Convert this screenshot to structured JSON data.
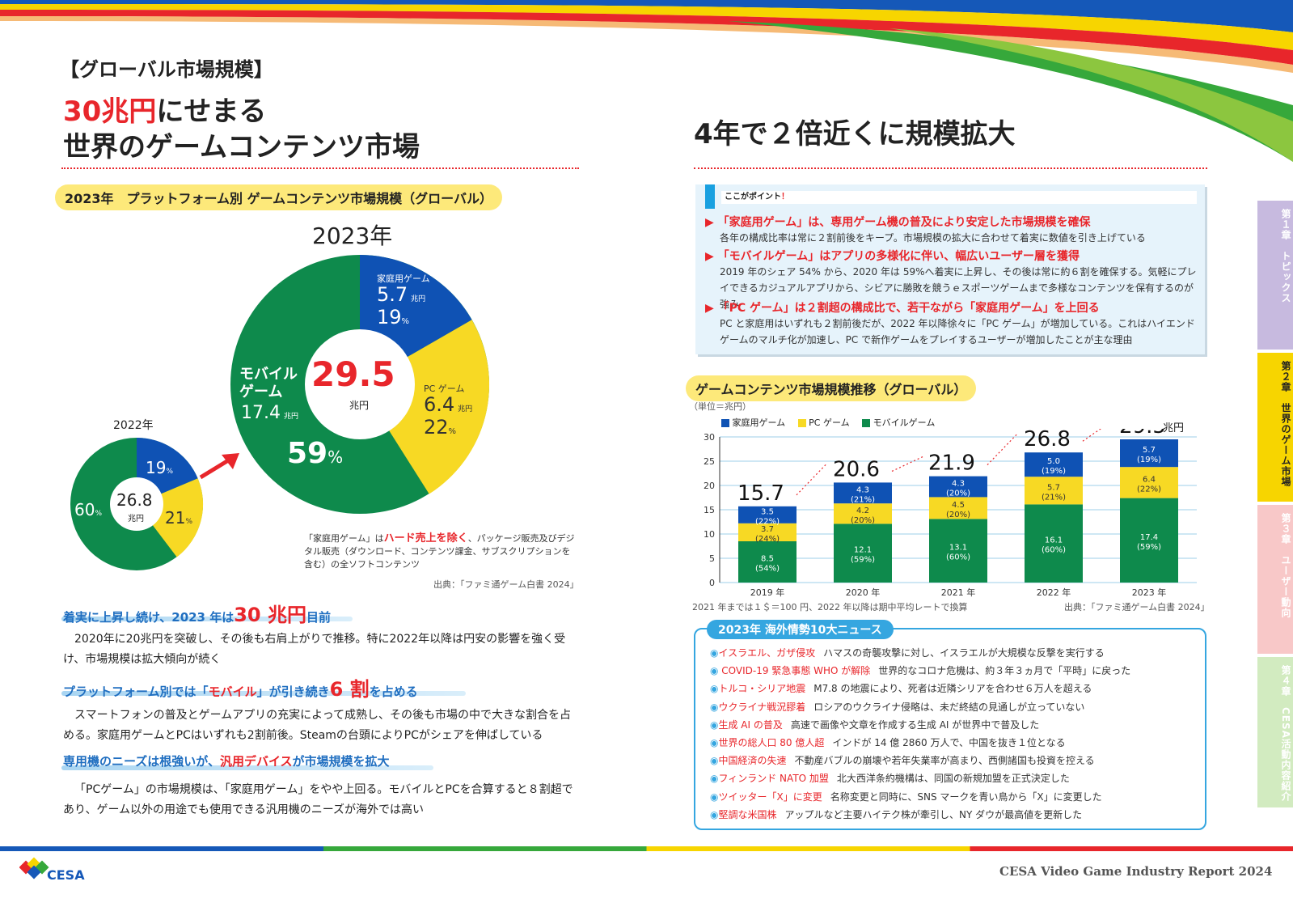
{
  "header": {
    "section_tag": "【グローバル市場規模】",
    "headline_red": "30兆円",
    "headline_rest": "にせまる",
    "headline_line2": "世界のゲームコンテンツ市場",
    "right_headline": "4年で２倍近くに規模拡大"
  },
  "pie_section": {
    "pill": "2023年　プラットフォーム別 ゲームコンテンツ市場規模（グローバル）",
    "year_2023_label": "2023年",
    "year_2022_label": "2022年",
    "big_total": "29.5",
    "big_total_unit": "兆円",
    "small_total": "26.8",
    "small_total_unit": "兆円",
    "console_label": "家庭用ゲーム",
    "console_value": "5.7",
    "console_unit": "兆円",
    "console_pct": "19",
    "pc_label": "PC ゲーム",
    "pc_value": "6.4",
    "pc_unit": "兆円",
    "pc_pct": "22",
    "mobile_label_1": "モバイル",
    "mobile_label_2": "ゲーム",
    "mobile_value": "17.4",
    "mobile_unit": "兆円",
    "mobile_pct": "59",
    "pct_sign": "%",
    "small_console_pct": "19",
    "small_pc_pct": "21",
    "small_mobile_pct": "60",
    "note_prefix": "「家庭用ゲーム」は",
    "note_red": "ハード売上を除く",
    "note_rest": "、パッケージ販売及びデジタル販売（ダウンロード、コンテンツ課金、サブスクリプションを含む）の全ソフトコンテンツ",
    "source": "出典：「ファミ通ゲーム白書 2024」"
  },
  "left_text": {
    "h1_pre": "着実に上昇し続け、2023 年は",
    "h1_big": "30 兆円",
    "h1_post": "目前",
    "p1": "2020年に20兆円を突破し、その後も右肩上がりで推移。特に2022年以降は円安の影響を強く受け、市場規模は拡大傾向が続く",
    "h2_pre": "プラットフォーム別では「",
    "h2_red": "モバイル",
    "h2_mid": "」が引き続き",
    "h2_big": "6 割",
    "h2_post": "を占める",
    "p2": "スマートフォンの普及とゲームアプリの充実によって成熟し、その後も市場の中で大きな割合を占める。家庭用ゲームとPCはいずれも2割前後。Steamの台頭によりPCがシェアを伸ばしている",
    "h3_pre": "専用機のニーズは根強いが、",
    "h3_red": "汎用デバイス",
    "h3_post": "が市場規模を拡大",
    "p3": "「PCゲーム」の市場規模は、「家庭用ゲーム」をやや上回る。モバイルとPCを合算すると８割超であり、ゲーム以外の用途でも使用できる汎用機のニーズが海外では高い"
  },
  "points": {
    "label": "ここがポイント",
    "label_mark": "！",
    "items": [
      {
        "title": "「家庭用ゲーム」は、専用ゲーム機の普及により安定した市場規模を確保",
        "body": "各年の構成比率は常に２割前後をキープ。市場規模の拡大に合わせて着実に数値を引き上げている"
      },
      {
        "title": "「モバイルゲーム」はアプリの多様化に伴い、幅広いユーザー層を獲得",
        "body": "2019 年のシェア 54% から、2020 年は 59%へ着実に上昇し、その後は常に約６割を確保する。気軽にプレイできるカジュアルアプリから、シビアに勝敗を競うｅスポーツゲームまで多様なコンテンツを保有するのが強み"
      },
      {
        "title": "「PC ゲーム」は２割超の構成比で、若干ながら「家庭用ゲーム」を上回る",
        "body": "PC と家庭用はいずれも２割前後だが、2022 年以降徐々に「PC ゲーム」が増加している。これはハイエンドゲームのマルチ化が加速し、PC で新作ゲームをプレイするユーザーが増加したことが主な理由"
      }
    ]
  },
  "bar_section": {
    "pill": "ゲームコンテンツ市場規模推移（グローバル）",
    "unit_note": "（単位＝兆円）",
    "footnote": "2021 年までは１＄＝100 円、2022 年以降は期中平均レートで換算",
    "source": "出典：「ファミ通ゲーム白書 2024」",
    "final_unit": "兆円",
    "y_ticks": [
      "0",
      "5",
      "10",
      "15",
      "20",
      "25",
      "30"
    ]
  },
  "chart_data": {
    "type": "bar",
    "stacked": true,
    "categories": [
      "2019 年",
      "2020 年",
      "2021 年",
      "2022 年",
      "2023 年"
    ],
    "series": [
      {
        "name": "モバイルゲーム",
        "color": "#0e8a4c",
        "values": [
          8.5,
          12.1,
          13.1,
          16.1,
          17.4
        ],
        "labels": [
          "8.5",
          "12.1",
          "13.1",
          "16.1",
          "17.4"
        ],
        "pcts": [
          "(54%)",
          "(59%)",
          "(60%)",
          "(60%)",
          "(59%)"
        ]
      },
      {
        "name": "PC ゲーム",
        "color": "#f7d924",
        "values": [
          3.7,
          4.2,
          4.5,
          5.7,
          6.4
        ],
        "labels": [
          "3.7",
          "4.2",
          "4.5",
          "5.7",
          "6.4"
        ],
        "pcts": [
          "(24%)",
          "(20%)",
          "(20%)",
          "(21%)",
          "(22%)"
        ]
      },
      {
        "name": "家庭用ゲーム",
        "color": "#0f52b4",
        "values": [
          3.5,
          4.3,
          4.3,
          5.0,
          5.7
        ],
        "labels": [
          "3.5",
          "4.3",
          "4.3",
          "5.0",
          "5.7"
        ],
        "pcts": [
          "(22%)",
          "(21%)",
          "(20%)",
          "(19%)",
          "(19%)"
        ]
      }
    ],
    "totals": [
      "15.7",
      "20.6",
      "21.9",
      "26.8",
      "29.5"
    ],
    "ylim": [
      0,
      30
    ],
    "legend": [
      "家庭用ゲーム",
      "PC ゲーム",
      "モバイルゲーム"
    ],
    "legend_position": "top-left"
  },
  "news": {
    "title": "2023年 海外情勢10大ニュース",
    "bullet": "◉",
    "items": [
      {
        "head": "イスラエル、ガザ侵攻",
        "text": "ハマスの奇襲攻撃に対し、イスラエルが大規模な反撃を実行する"
      },
      {
        "head": " COVID-19 緊急事態 WHO が解除",
        "text": "世界的なコロナ危機は、約３年３ヵ月で「平時」に戻った"
      },
      {
        "head": "トルコ・シリア地震",
        "text": "M7.8 の地震により、死者は近隣シリアを合わせ６万人を超える"
      },
      {
        "head": "ウクライナ戦況膠着",
        "text": "ロシアのウクライナ侵略は、未だ終結の見通しが立っていない"
      },
      {
        "head": "生成 AI の普及",
        "text": "高速で画像や文章を作成する生成 AI が世界中で普及した"
      },
      {
        "head": "世界の総人口 80 億人超",
        "text": "インドが 14 億 2860 万人で、中国を抜き１位となる"
      },
      {
        "head": "中国経済の失速",
        "text": "不動産バブルの崩壊や若年失業率が高まり、西側諸国も投資を控える"
      },
      {
        "head": "フィンランド NATO 加盟",
        "text": "北大西洋条約機構は、同国の新規加盟を正式決定した"
      },
      {
        "head": "ツイッター「X」に変更",
        "text": "名称変更と同時に、SNS マークを青い鳥から「X」に変更した"
      },
      {
        "head": "堅調な米国株",
        "text": "アップルなど主要ハイテク株が牽引し、NY ダウが最高値を更新した"
      }
    ]
  },
  "side_tabs": [
    {
      "label": "第１章　トピックス",
      "color": "#b9a9d8"
    },
    {
      "label": "第２章　世界のゲーム市場",
      "color": "#f7d500"
    },
    {
      "label": "第３章　ユーザー動向",
      "color": "#f6b9b9"
    },
    {
      "label": "第４章　CESA活動内容紹介",
      "color": "#c5e3b0"
    }
  ],
  "footer": {
    "logo_text": "CESA",
    "report_title": "CESA Video Game Industry Report 2024"
  }
}
